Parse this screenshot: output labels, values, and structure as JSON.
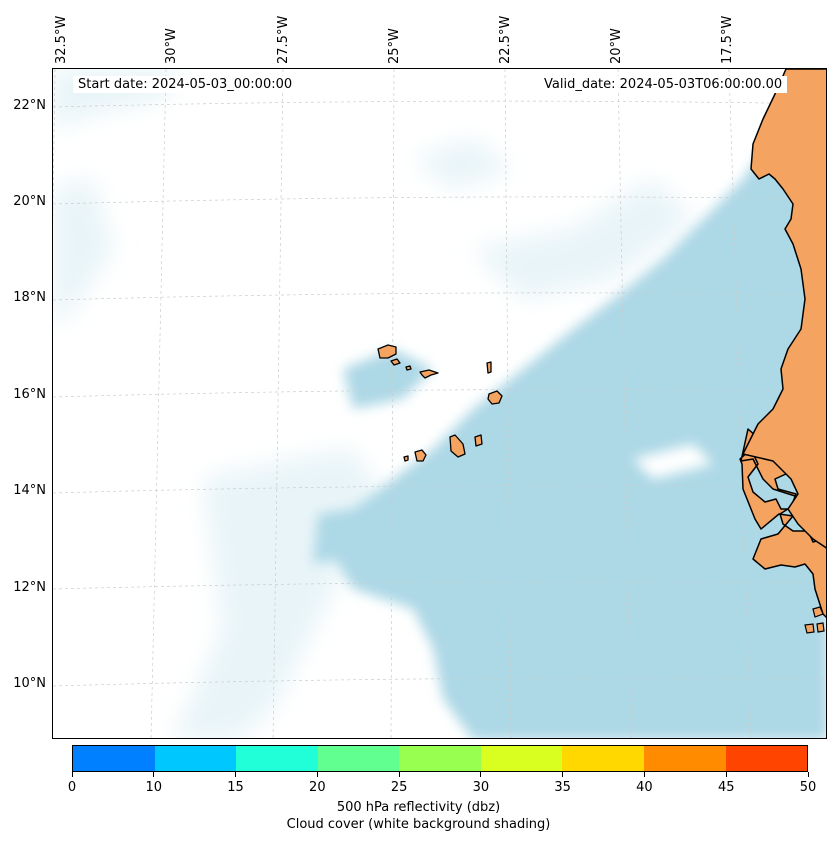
{
  "header": {
    "start_date": "Start date: 2024-05-03_00:00:00",
    "valid_date": "Valid_date: 2024-05-03T06:00:00.00"
  },
  "map": {
    "region": "Cape Verde and West African coast",
    "ocean_color": "#ffffff",
    "cloud_color": "#add8e6",
    "land_color": "#f4a460",
    "coastline_color": "#000000",
    "gridline_color": "#cccccc",
    "lon_labels": [
      "32.5°W",
      "30°W",
      "27.5°W",
      "25°W",
      "22.5°W",
      "20°W",
      "17.5°W"
    ],
    "lat_labels": [
      "22°N",
      "20°N",
      "18°N",
      "16°N",
      "14°N",
      "12°N",
      "10°N"
    ]
  },
  "colorbar": {
    "ticks": [
      "0",
      "10",
      "15",
      "20",
      "25",
      "30",
      "35",
      "40",
      "45",
      "50"
    ],
    "colors": [
      "#0080ff",
      "#00c8ff",
      "#20ffd8",
      "#60ff90",
      "#98ff50",
      "#d8ff20",
      "#ffd800",
      "#ff8c00",
      "#ff4400"
    ],
    "label_line1": "500 hPa reflectivity (dbz)",
    "label_line2": "Cloud cover (white background shading)"
  }
}
